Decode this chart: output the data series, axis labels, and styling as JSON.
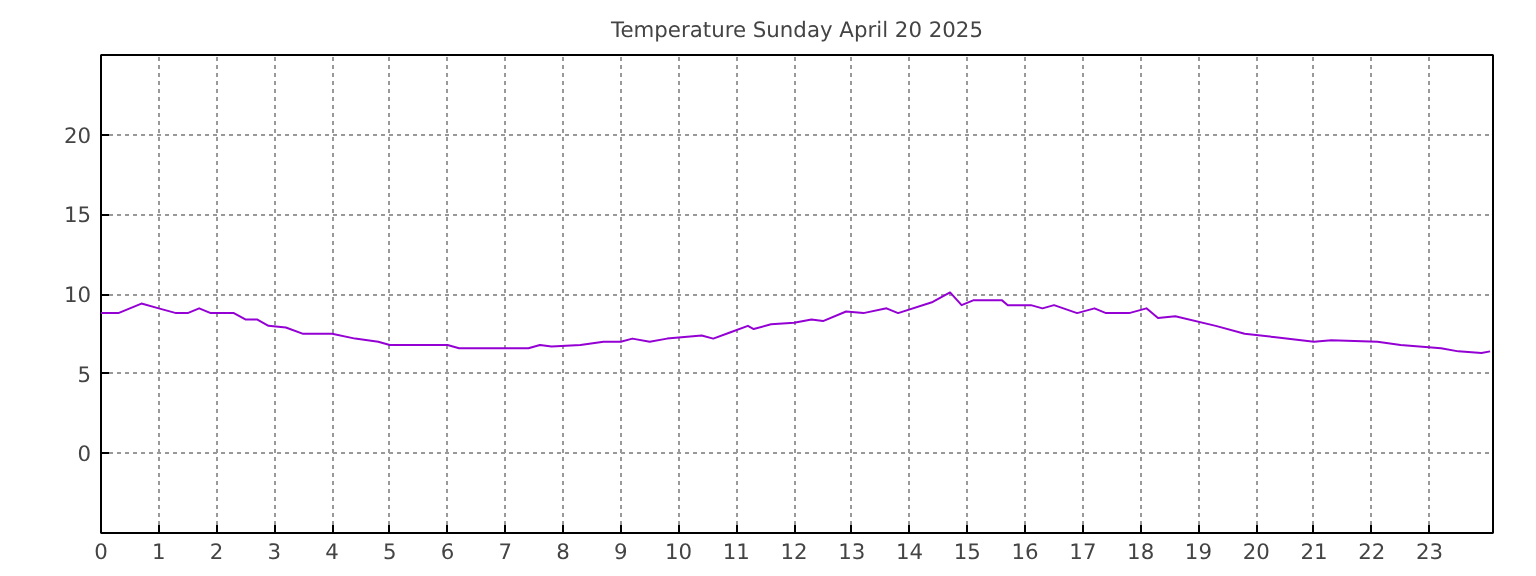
{
  "chart_data": {
    "type": "line",
    "title": "Temperature Sunday April 20 2025",
    "x": [
      0,
      0.3,
      0.7,
      1.0,
      1.3,
      1.5,
      1.7,
      1.9,
      2.3,
      2.5,
      2.7,
      2.9,
      3.2,
      3.5,
      4.0,
      4.4,
      4.8,
      5.0,
      6.0,
      6.2,
      7.0,
      7.4,
      7.6,
      7.8,
      8.3,
      8.7,
      9.0,
      9.2,
      9.5,
      9.8,
      10.4,
      10.6,
      10.9,
      11.2,
      11.3,
      11.6,
      12.0,
      12.3,
      12.5,
      12.9,
      13.2,
      13.6,
      13.8,
      14.4,
      14.7,
      14.9,
      15.1,
      15.6,
      15.7,
      16.1,
      16.3,
      16.5,
      16.9,
      17.2,
      17.4,
      17.8,
      18.1,
      18.3,
      18.6,
      19.3,
      19.8,
      20.3,
      21.0,
      21.3,
      22.1,
      22.5,
      23.2,
      23.5,
      23.9,
      24.05
    ],
    "series": [
      {
        "color": "#9400d3",
        "values": [
          8.8,
          8.8,
          9.4,
          9.1,
          8.8,
          8.8,
          9.1,
          8.8,
          8.8,
          8.4,
          8.4,
          8.0,
          7.9,
          7.5,
          7.5,
          7.2,
          7.0,
          6.8,
          6.8,
          6.6,
          6.6,
          6.6,
          6.8,
          6.7,
          6.8,
          7.0,
          7.0,
          7.2,
          7.0,
          7.2,
          7.4,
          7.2,
          7.6,
          8.0,
          7.8,
          8.1,
          8.2,
          8.4,
          8.3,
          8.9,
          8.8,
          9.1,
          8.8,
          9.5,
          10.1,
          9.3,
          9.6,
          9.6,
          9.3,
          9.3,
          9.1,
          9.3,
          8.8,
          9.1,
          8.8,
          8.8,
          9.1,
          8.5,
          8.6,
          8.0,
          7.5,
          7.3,
          7.0,
          7.1,
          7.0,
          6.8,
          6.6,
          6.4,
          6.3,
          6.4
        ]
      }
    ],
    "xlim": [
      0,
      24.1
    ],
    "ylim": [
      -5,
      25
    ],
    "xticks": [
      0,
      1,
      2,
      3,
      4,
      5,
      6,
      7,
      8,
      9,
      10,
      11,
      12,
      13,
      14,
      15,
      16,
      17,
      18,
      19,
      20,
      21,
      22,
      23
    ],
    "yticks": [
      0,
      5,
      10,
      15,
      20
    ],
    "grid": true,
    "line_style": "solid"
  }
}
